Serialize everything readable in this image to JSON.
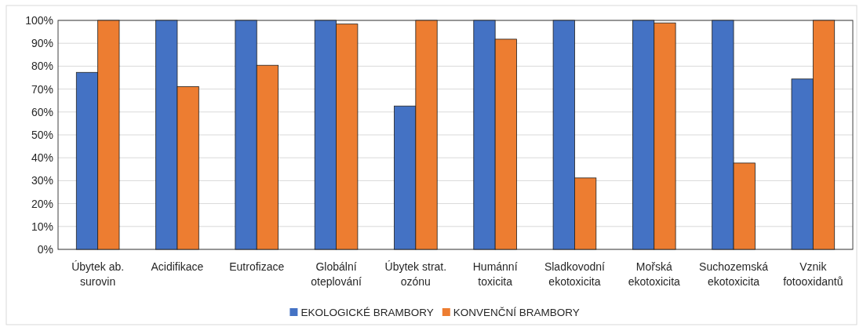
{
  "chart_data": {
    "type": "bar",
    "categories": [
      "Úbytek ab. surovin",
      "Acidifikace",
      "Eutrofizace",
      "Globální oteplování",
      "Úbytek strat. ozónu",
      "Humánní toxicita",
      "Sladkovodní ekotoxicita",
      "Mořská ekotoxicita",
      "Suchozemská ekotoxicita",
      "Vznik fotooxidantů"
    ],
    "series": [
      {
        "name": "EKOLOGICKÉ BRAMBORY",
        "color": "#4472c4",
        "values": [
          77.3,
          100,
          100,
          100,
          62.6,
          100,
          100,
          100,
          100,
          74.4
        ]
      },
      {
        "name": "KONVENČNÍ BRAMBORY",
        "color": "#ed7d31",
        "values": [
          100,
          71.1,
          80.4,
          98.4,
          100,
          91.8,
          31.2,
          98.9,
          37.7,
          100
        ]
      }
    ],
    "ylim": [
      0,
      100
    ],
    "yticks": [
      {
        "value": 0,
        "label": "0%"
      },
      {
        "value": 10,
        "label": "10%"
      },
      {
        "value": 20,
        "label": "20%"
      },
      {
        "value": 30,
        "label": "30%"
      },
      {
        "value": 40,
        "label": "40%"
      },
      {
        "value": 50,
        "label": "50%"
      },
      {
        "value": 60,
        "label": "60%"
      },
      {
        "value": 70,
        "label": "70%"
      },
      {
        "value": 80,
        "label": "80%"
      },
      {
        "value": 90,
        "label": "90%"
      },
      {
        "value": 100,
        "label": "100%"
      }
    ],
    "grid": "y",
    "legend": "bottom"
  }
}
